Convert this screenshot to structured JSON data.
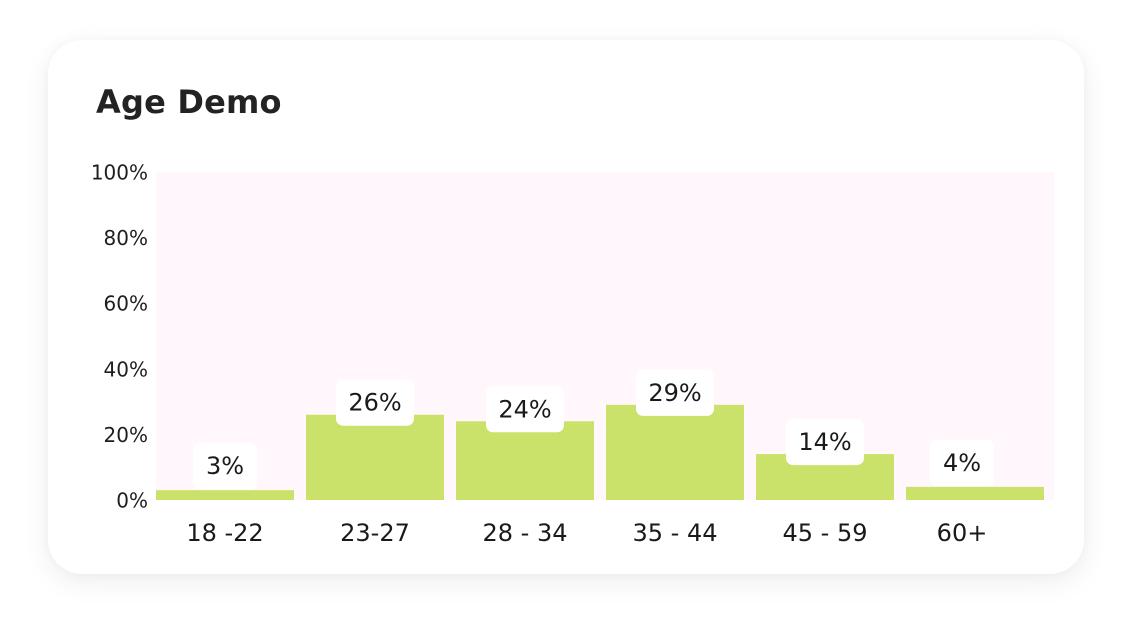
{
  "card": {
    "title": "Age Demo"
  },
  "colors": {
    "bar": "#cbe26a",
    "plot_background": "#fff7fb",
    "label_box": "#ffffff"
  },
  "chart_data": {
    "type": "bar",
    "title": "Age Demo",
    "categories": [
      "18 -22",
      "23-27",
      "28 - 34",
      "35 - 44",
      "45 - 59",
      "60+"
    ],
    "values": [
      3,
      26,
      24,
      29,
      14,
      4
    ],
    "value_labels": [
      "3%",
      "26%",
      "24%",
      "29%",
      "14%",
      "4%"
    ],
    "y_ticks": [
      "0%",
      "20%",
      "40%",
      "60%",
      "80%",
      "100%"
    ],
    "ylim": [
      0,
      100
    ],
    "ylabel": "",
    "xlabel": "",
    "grid": false,
    "legend": "none"
  }
}
